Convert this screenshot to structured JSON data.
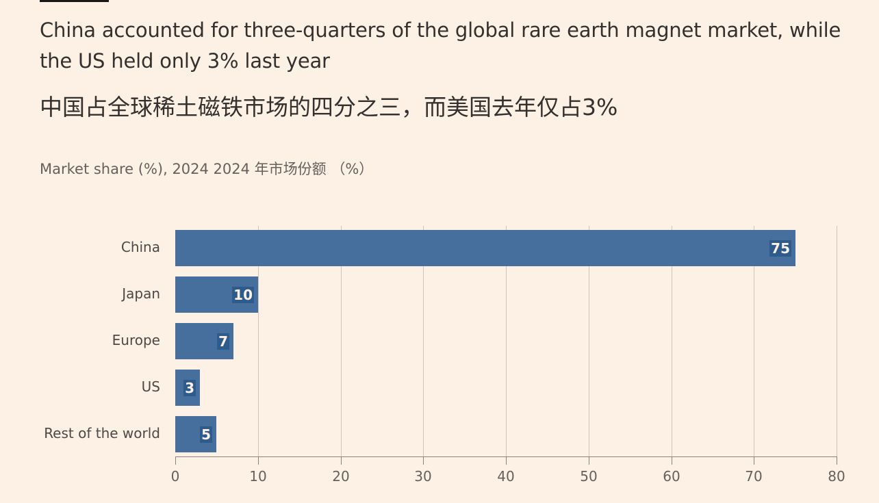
{
  "header": {
    "title_en": "China accounted for three-quarters of the global rare earth magnet market, while the US held only 3% last year",
    "title_zh": "中国占全球稀土磁铁市场的四分之三，而美国去年仅占3%",
    "subtitle": "Market share (%), 2024  2024 年市场份额 （%）"
  },
  "colors": {
    "background": "#fdf1e6",
    "bar": "#466f9d",
    "text": "#33302e"
  },
  "chart_data": {
    "type": "bar",
    "orientation": "horizontal",
    "title": "China accounted for three-quarters of the global rare earth magnet market, while the US held only 3% last year",
    "subtitle": "Market share (%), 2024",
    "categories": [
      "China",
      "Japan",
      "Europe",
      "US",
      "Rest of the world"
    ],
    "values": [
      75,
      10,
      7,
      3,
      5
    ],
    "value_labels": [
      "75",
      "10",
      "7",
      "3",
      "5"
    ],
    "xlabel": "",
    "ylabel": "",
    "xlim": [
      0,
      80
    ],
    "x_ticks": [
      "0",
      "10",
      "20",
      "30",
      "40",
      "50",
      "60",
      "70",
      "80"
    ],
    "grid": true,
    "legend": null
  }
}
